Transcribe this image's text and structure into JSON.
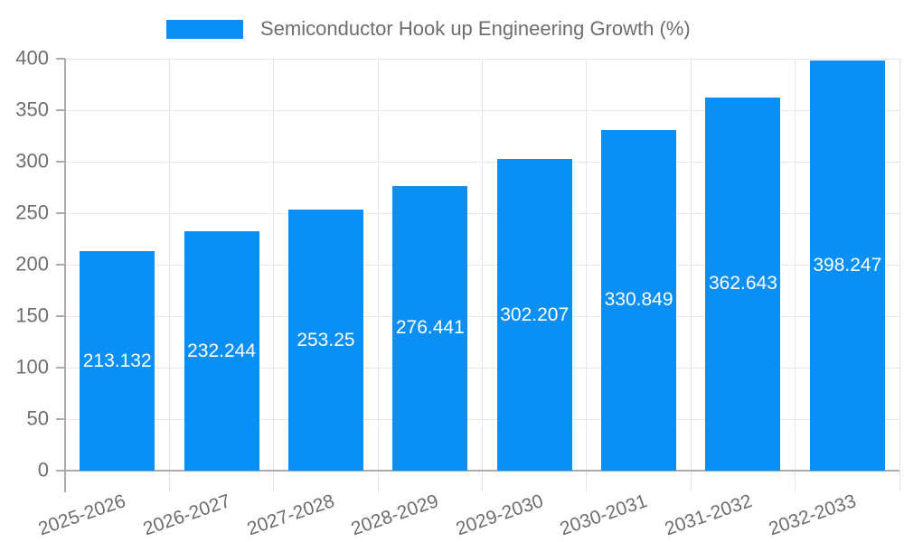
{
  "legend": {
    "label": "Semiconductor Hook up Engineering Growth (%)",
    "swatch_color": "#0a90f5"
  },
  "chart_data": {
    "type": "bar",
    "title": "Semiconductor Hook up Engineering Growth (%)",
    "categories": [
      "2025-2026",
      "2026-2027",
      "2027-2028",
      "2028-2029",
      "2029-2030",
      "2030-2031",
      "2031-2032",
      "2032-2033"
    ],
    "series": [
      {
        "name": "Semiconductor Hook up Engineering Growth (%)",
        "values": [
          213.132,
          232.244,
          253.25,
          276.441,
          302.207,
          330.849,
          362.643,
          398.247
        ]
      }
    ],
    "value_labels": [
      "213.132",
      "232.244",
      "253.25",
      "276.441",
      "302.207",
      "330.849",
      "362.643",
      "398.247"
    ],
    "y_tick_labels": [
      "0",
      "50",
      "100",
      "150",
      "200",
      "250",
      "300",
      "350",
      "400"
    ],
    "xlabel": "",
    "ylabel": "",
    "ylim": [
      0,
      400
    ],
    "ytick_step": 50,
    "grid": true,
    "legend_position": "top",
    "x_label_rotation_deg": -19,
    "colors": {
      "bar": "#0a90f5",
      "gridline": "#e6e6e6",
      "axis": "#ababab",
      "tick_text": "#6e6e6e",
      "value_label": "#ffffff",
      "background": "#ffffff"
    }
  }
}
